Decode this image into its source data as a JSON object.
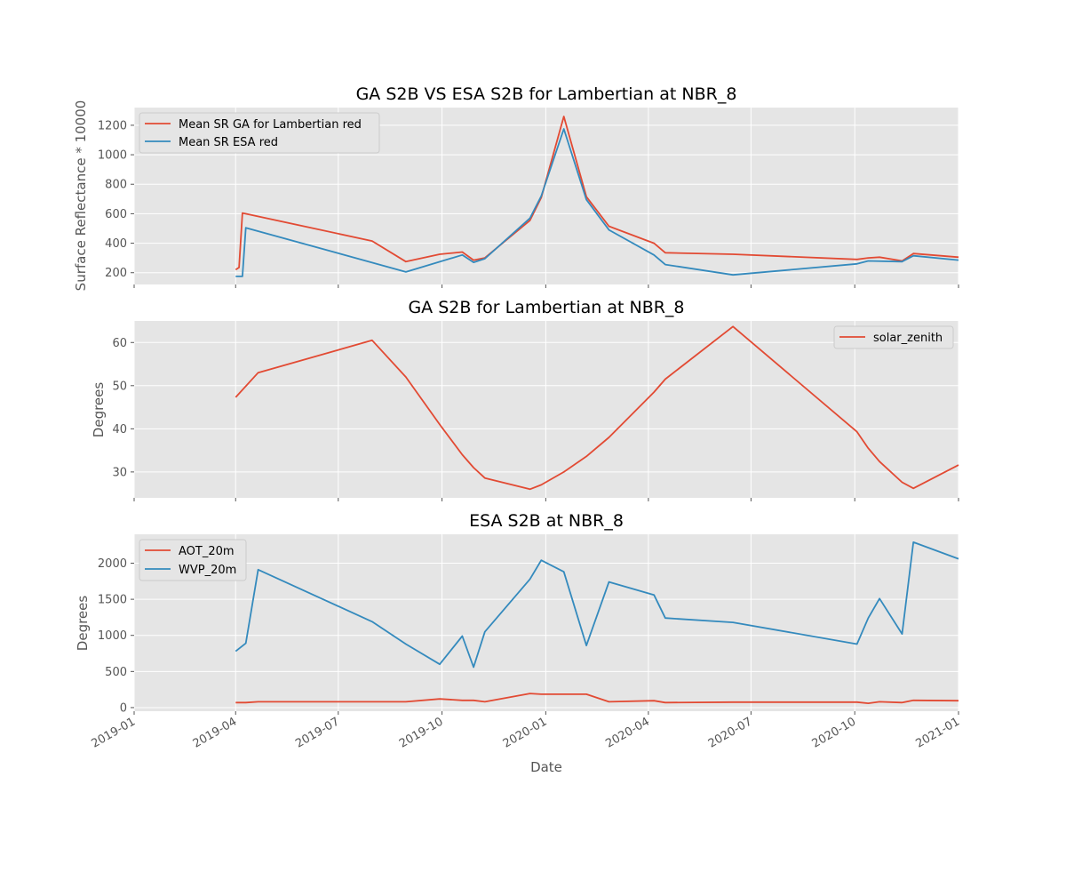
{
  "figure": {
    "xlabel": "Date",
    "x_tick_labels": [
      "2019-01",
      "2019-04",
      "2019-07",
      "2019-10",
      "2020-01",
      "2020-04",
      "2020-07",
      "2020-10",
      "2021-01"
    ],
    "x_ticks": [
      "2019-01-01",
      "2019-04-01",
      "2019-07-01",
      "2019-10-01",
      "2020-01-01",
      "2020-04-01",
      "2020-07-01",
      "2020-10-01",
      "2021-01-01"
    ],
    "xlim": [
      "2019-01-01",
      "2021-01-01"
    ],
    "colors": {
      "red": "#E24A33",
      "blue": "#348ABD",
      "axes_bg": "#E5E5E5",
      "grid": "#FFFFFF",
      "text": "#555555"
    }
  },
  "chart_data": [
    {
      "type": "line",
      "title": "GA S2B VS ESA S2B for Lambertian at NBR_8",
      "ylabel": "Surface Reflectance * 10000",
      "ylim": [
        120,
        1320
      ],
      "yticks": [
        200,
        400,
        600,
        800,
        1000,
        1200
      ],
      "grid": true,
      "legend": "top-left",
      "series": [
        {
          "name": "Mean SR GA for Lambertian red",
          "color": "#E24A33",
          "x": [
            "2019-04-01",
            "2019-04-04",
            "2019-04-07",
            "2019-07-31",
            "2019-08-30",
            "2019-09-29",
            "2019-10-19",
            "2019-10-29",
            "2019-11-08",
            "2019-12-18",
            "2019-12-28",
            "2020-01-17",
            "2020-02-06",
            "2020-02-26",
            "2020-04-06",
            "2020-04-16",
            "2020-06-15",
            "2020-10-03",
            "2020-10-13",
            "2020-10-23",
            "2020-11-12",
            "2020-11-22",
            "2021-01-01"
          ],
          "y": [
            220,
            235,
            605,
            415,
            275,
            325,
            340,
            285,
            300,
            555,
            710,
            1260,
            715,
            515,
            400,
            335,
            325,
            290,
            300,
            305,
            280,
            330,
            305
          ]
        },
        {
          "name": "Mean SR ESA red",
          "color": "#348ABD",
          "x": [
            "2019-04-01",
            "2019-04-07",
            "2019-04-10",
            "2019-08-30",
            "2019-10-19",
            "2019-10-29",
            "2019-11-08",
            "2019-12-18",
            "2019-12-28",
            "2020-01-17",
            "2020-02-06",
            "2020-02-26",
            "2020-04-06",
            "2020-04-16",
            "2020-06-15",
            "2020-10-03",
            "2020-10-13",
            "2020-11-12",
            "2020-11-22",
            "2021-01-01"
          ],
          "y": [
            175,
            175,
            505,
            205,
            320,
            270,
            295,
            570,
            720,
            1175,
            695,
            490,
            320,
            255,
            185,
            260,
            280,
            275,
            315,
            285
          ]
        }
      ]
    },
    {
      "type": "line",
      "title": "GA S2B for Lambertian at NBR_8",
      "ylabel": "Degrees",
      "ylim": [
        24,
        65
      ],
      "yticks": [
        30,
        40,
        50,
        60
      ],
      "grid": true,
      "legend": "top-right",
      "series": [
        {
          "name": "solar_zenith",
          "color": "#E24A33",
          "x": [
            "2019-04-01",
            "2019-04-21",
            "2019-07-31",
            "2019-08-30",
            "2019-09-29",
            "2019-10-19",
            "2019-10-29",
            "2019-11-08",
            "2019-12-18",
            "2019-12-28",
            "2020-01-17",
            "2020-02-06",
            "2020-02-26",
            "2020-04-06",
            "2020-04-16",
            "2020-06-15",
            "2020-10-03",
            "2020-10-13",
            "2020-10-23",
            "2020-11-12",
            "2020-11-22",
            "2021-01-01"
          ],
          "y": [
            47.3,
            53.0,
            60.5,
            52.0,
            41.0,
            34.0,
            31.0,
            28.6,
            26.0,
            27.0,
            30.0,
            33.6,
            38.0,
            48.5,
            51.5,
            63.7,
            39.3,
            35.5,
            32.4,
            27.6,
            26.2,
            31.6
          ]
        }
      ]
    },
    {
      "type": "line",
      "title": "ESA S2B at NBR_8",
      "ylabel": "Degrees",
      "ylim": [
        -50,
        2400
      ],
      "yticks": [
        0,
        500,
        1000,
        1500,
        2000
      ],
      "grid": true,
      "legend": "top-left",
      "series": [
        {
          "name": "AOT_20m",
          "color": "#E24A33",
          "x": [
            "2019-04-01",
            "2019-04-10",
            "2019-04-21",
            "2019-08-30",
            "2019-09-29",
            "2019-10-19",
            "2019-10-29",
            "2019-11-08",
            "2019-12-18",
            "2019-12-28",
            "2020-01-17",
            "2020-02-06",
            "2020-02-26",
            "2020-04-06",
            "2020-04-16",
            "2020-06-15",
            "2020-10-03",
            "2020-10-13",
            "2020-10-23",
            "2020-11-12",
            "2020-11-22",
            "2021-01-01"
          ],
          "y": [
            70,
            70,
            80,
            80,
            120,
            100,
            100,
            80,
            195,
            185,
            185,
            185,
            80,
            95,
            70,
            75,
            75,
            60,
            80,
            70,
            100,
            95
          ]
        },
        {
          "name": "WVP_20m",
          "color": "#348ABD",
          "x": [
            "2019-04-01",
            "2019-04-10",
            "2019-04-21",
            "2019-07-31",
            "2019-08-30",
            "2019-09-29",
            "2019-10-19",
            "2019-10-29",
            "2019-11-08",
            "2019-12-18",
            "2019-12-28",
            "2020-01-17",
            "2020-02-06",
            "2020-02-26",
            "2020-04-06",
            "2020-04-16",
            "2020-06-15",
            "2020-10-03",
            "2020-10-13",
            "2020-10-23",
            "2020-11-12",
            "2020-11-22",
            "2021-01-01"
          ],
          "y": [
            780,
            890,
            1910,
            1190,
            880,
            600,
            990,
            560,
            1050,
            1780,
            2040,
            1880,
            860,
            1740,
            1560,
            1240,
            1180,
            880,
            1240,
            1510,
            1020,
            2290,
            2060
          ]
        }
      ]
    }
  ]
}
